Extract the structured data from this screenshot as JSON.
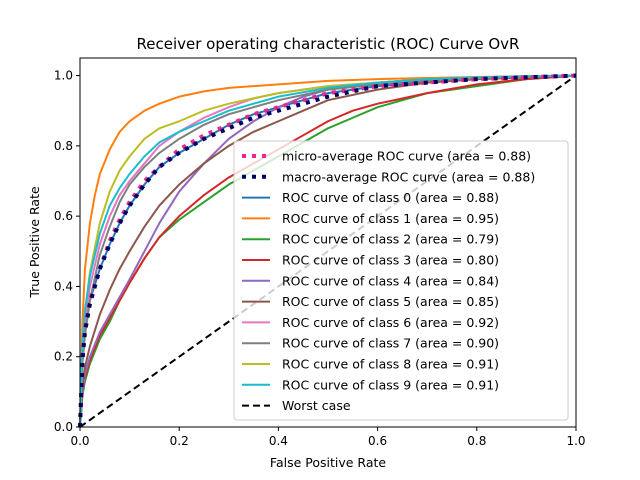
{
  "chart_data": {
    "type": "line",
    "title": "Receiver operating characteristic (ROC) Curve OvR",
    "xlabel": "False Positive Rate",
    "ylabel": "True Positive Rate",
    "xlim": [
      0,
      1
    ],
    "ylim": [
      0,
      1.05
    ],
    "xticks": [
      "0.0",
      "0.2",
      "0.4",
      "0.6",
      "0.8",
      "1.0"
    ],
    "yticks": [
      "0.0",
      "0.2",
      "0.4",
      "0.6",
      "0.8",
      "1.0"
    ],
    "grid": false,
    "legend_position": "lower-right",
    "series": [
      {
        "name": "micro-average ROC curve (area = 0.88)",
        "color": "#e7298a",
        "style": "dotted",
        "x": [
          0,
          0.005,
          0.01,
          0.02,
          0.04,
          0.06,
          0.08,
          0.1,
          0.13,
          0.16,
          0.2,
          0.25,
          0.3,
          0.35,
          0.4,
          0.45,
          0.5,
          0.6,
          0.7,
          0.8,
          0.9,
          1.0
        ],
        "y": [
          0,
          0.2,
          0.28,
          0.36,
          0.45,
          0.53,
          0.59,
          0.64,
          0.7,
          0.74,
          0.79,
          0.83,
          0.86,
          0.89,
          0.91,
          0.93,
          0.95,
          0.97,
          0.98,
          0.99,
          0.995,
          1.0
        ]
      },
      {
        "name": "macro-average ROC curve (area = 0.88)",
        "color": "#000066",
        "style": "dotted",
        "x": [
          0,
          0.005,
          0.01,
          0.02,
          0.04,
          0.06,
          0.08,
          0.1,
          0.13,
          0.16,
          0.2,
          0.25,
          0.3,
          0.35,
          0.4,
          0.45,
          0.5,
          0.6,
          0.7,
          0.8,
          0.9,
          1.0
        ],
        "y": [
          0,
          0.19,
          0.27,
          0.35,
          0.45,
          0.52,
          0.58,
          0.63,
          0.69,
          0.74,
          0.78,
          0.82,
          0.85,
          0.88,
          0.9,
          0.92,
          0.94,
          0.97,
          0.98,
          0.99,
          0.995,
          1.0
        ]
      },
      {
        "name": "ROC curve of class 0 (area = 0.88)",
        "color": "#1f77b4",
        "style": "solid",
        "x": [
          0,
          0.005,
          0.01,
          0.02,
          0.04,
          0.06,
          0.08,
          0.1,
          0.13,
          0.16,
          0.2,
          0.25,
          0.3,
          0.35,
          0.4,
          0.45,
          0.5,
          0.6,
          0.7,
          0.8,
          0.9,
          1.0
        ],
        "y": [
          0,
          0.2,
          0.28,
          0.36,
          0.45,
          0.52,
          0.58,
          0.63,
          0.69,
          0.74,
          0.78,
          0.82,
          0.86,
          0.89,
          0.91,
          0.93,
          0.95,
          0.97,
          0.98,
          0.99,
          0.995,
          1.0
        ]
      },
      {
        "name": "ROC curve of class 1 (area = 0.95)",
        "color": "#ff7f0e",
        "style": "solid",
        "x": [
          0,
          0.005,
          0.01,
          0.02,
          0.03,
          0.04,
          0.06,
          0.08,
          0.1,
          0.13,
          0.16,
          0.2,
          0.25,
          0.3,
          0.4,
          0.5,
          0.6,
          0.7,
          0.8,
          0.9,
          1.0
        ],
        "y": [
          0,
          0.3,
          0.45,
          0.58,
          0.66,
          0.72,
          0.79,
          0.84,
          0.87,
          0.9,
          0.92,
          0.94,
          0.955,
          0.965,
          0.975,
          0.985,
          0.99,
          0.993,
          0.996,
          0.998,
          1.0
        ]
      },
      {
        "name": "ROC curve of class 2 (area = 0.79)",
        "color": "#2ca02c",
        "style": "solid",
        "x": [
          0,
          0.005,
          0.01,
          0.02,
          0.04,
          0.06,
          0.08,
          0.1,
          0.13,
          0.16,
          0.2,
          0.25,
          0.3,
          0.35,
          0.4,
          0.45,
          0.5,
          0.55,
          0.6,
          0.7,
          0.8,
          0.9,
          1.0
        ],
        "y": [
          0,
          0.09,
          0.13,
          0.18,
          0.25,
          0.3,
          0.36,
          0.41,
          0.48,
          0.54,
          0.59,
          0.64,
          0.69,
          0.73,
          0.77,
          0.81,
          0.85,
          0.88,
          0.91,
          0.95,
          0.97,
          0.99,
          1.0
        ]
      },
      {
        "name": "ROC curve of class 3 (area = 0.80)",
        "color": "#d62728",
        "style": "solid",
        "x": [
          0,
          0.005,
          0.01,
          0.02,
          0.04,
          0.06,
          0.08,
          0.1,
          0.13,
          0.16,
          0.2,
          0.25,
          0.3,
          0.35,
          0.4,
          0.45,
          0.5,
          0.55,
          0.6,
          0.7,
          0.8,
          0.9,
          1.0
        ],
        "y": [
          0,
          0.1,
          0.14,
          0.19,
          0.26,
          0.31,
          0.36,
          0.41,
          0.48,
          0.54,
          0.6,
          0.66,
          0.71,
          0.75,
          0.79,
          0.83,
          0.87,
          0.9,
          0.92,
          0.95,
          0.975,
          0.99,
          1.0
        ]
      },
      {
        "name": "ROC curve of class 4 (area = 0.84)",
        "color": "#9467bd",
        "style": "solid",
        "x": [
          0,
          0.005,
          0.01,
          0.02,
          0.04,
          0.06,
          0.08,
          0.1,
          0.13,
          0.16,
          0.2,
          0.25,
          0.3,
          0.35,
          0.4,
          0.45,
          0.5,
          0.6,
          0.7,
          0.8,
          0.9,
          1.0
        ],
        "y": [
          0,
          0.1,
          0.15,
          0.2,
          0.27,
          0.32,
          0.37,
          0.42,
          0.5,
          0.58,
          0.67,
          0.75,
          0.82,
          0.87,
          0.91,
          0.94,
          0.96,
          0.98,
          0.99,
          0.995,
          0.998,
          1.0
        ]
      },
      {
        "name": "ROC curve of class 5 (area = 0.85)",
        "color": "#8c564b",
        "style": "solid",
        "x": [
          0,
          0.005,
          0.01,
          0.02,
          0.04,
          0.06,
          0.08,
          0.1,
          0.13,
          0.16,
          0.2,
          0.25,
          0.3,
          0.35,
          0.4,
          0.45,
          0.5,
          0.6,
          0.7,
          0.8,
          0.9,
          1.0
        ],
        "y": [
          0,
          0.12,
          0.17,
          0.23,
          0.32,
          0.39,
          0.45,
          0.5,
          0.57,
          0.63,
          0.69,
          0.75,
          0.8,
          0.84,
          0.87,
          0.9,
          0.93,
          0.96,
          0.98,
          0.99,
          0.995,
          1.0
        ]
      },
      {
        "name": "ROC curve of class 6 (area = 0.92)",
        "color": "#e377c2",
        "style": "solid",
        "x": [
          0,
          0.005,
          0.01,
          0.02,
          0.04,
          0.06,
          0.08,
          0.1,
          0.13,
          0.16,
          0.2,
          0.25,
          0.3,
          0.35,
          0.4,
          0.5,
          0.6,
          0.7,
          0.8,
          0.9,
          1.0
        ],
        "y": [
          0,
          0.22,
          0.3,
          0.4,
          0.52,
          0.6,
          0.66,
          0.7,
          0.75,
          0.8,
          0.84,
          0.88,
          0.91,
          0.935,
          0.95,
          0.97,
          0.98,
          0.99,
          0.995,
          0.998,
          1.0
        ]
      },
      {
        "name": "ROC curve of class 7 (area = 0.90)",
        "color": "#7f7f7f",
        "style": "solid",
        "x": [
          0,
          0.005,
          0.01,
          0.02,
          0.04,
          0.06,
          0.08,
          0.1,
          0.13,
          0.16,
          0.2,
          0.25,
          0.3,
          0.35,
          0.4,
          0.5,
          0.6,
          0.7,
          0.8,
          0.9,
          1.0
        ],
        "y": [
          0,
          0.18,
          0.26,
          0.36,
          0.49,
          0.57,
          0.64,
          0.69,
          0.74,
          0.78,
          0.82,
          0.86,
          0.89,
          0.91,
          0.93,
          0.96,
          0.975,
          0.985,
          0.993,
          0.997,
          1.0
        ]
      },
      {
        "name": "ROC curve of class 8 (area = 0.91)",
        "color": "#bcbd22",
        "style": "solid",
        "x": [
          0,
          0.005,
          0.01,
          0.02,
          0.04,
          0.06,
          0.08,
          0.1,
          0.13,
          0.16,
          0.2,
          0.25,
          0.3,
          0.35,
          0.4,
          0.5,
          0.6,
          0.7,
          0.8,
          0.9,
          1.0
        ],
        "y": [
          0,
          0.24,
          0.33,
          0.44,
          0.58,
          0.67,
          0.73,
          0.77,
          0.82,
          0.85,
          0.87,
          0.9,
          0.92,
          0.935,
          0.95,
          0.97,
          0.98,
          0.99,
          0.995,
          0.998,
          1.0
        ]
      },
      {
        "name": "ROC curve of class 9 (area = 0.91)",
        "color": "#17becf",
        "style": "solid",
        "x": [
          0,
          0.005,
          0.01,
          0.02,
          0.04,
          0.06,
          0.08,
          0.1,
          0.13,
          0.16,
          0.2,
          0.25,
          0.3,
          0.35,
          0.4,
          0.5,
          0.6,
          0.7,
          0.8,
          0.9,
          1.0
        ],
        "y": [
          0,
          0.24,
          0.33,
          0.43,
          0.55,
          0.63,
          0.68,
          0.72,
          0.77,
          0.81,
          0.84,
          0.87,
          0.9,
          0.92,
          0.94,
          0.965,
          0.98,
          0.99,
          0.995,
          0.998,
          1.0
        ]
      },
      {
        "name": "Worst case",
        "color": "#000000",
        "style": "dashed",
        "x": [
          0,
          1
        ],
        "y": [
          0,
          1
        ]
      }
    ]
  }
}
